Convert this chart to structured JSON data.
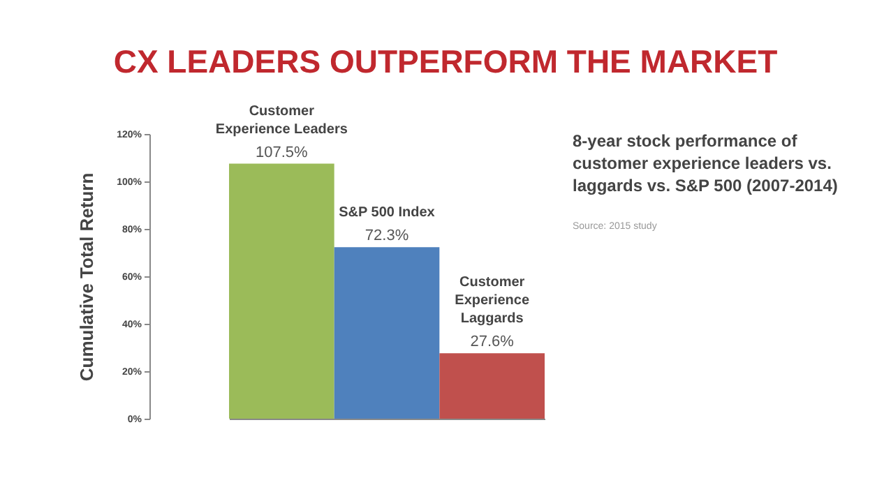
{
  "chart_data": {
    "type": "bar",
    "title": "CX LEADERS OUTPERFORM THE MARKET",
    "ylabel": "Cumulative Total Return",
    "categories": [
      "Customer Experience Leaders",
      "S&P 500 Index",
      "Customer Experience Laggards"
    ],
    "values": [
      107.5,
      72.3,
      27.6
    ],
    "colors": [
      "#9bbb59",
      "#4f81bd",
      "#c0504d"
    ],
    "value_labels": [
      "107.5%",
      "72.3%",
      "27.6%"
    ],
    "ylim": [
      0,
      120
    ],
    "yticks": [
      {
        "value": 0,
        "label": "0%"
      },
      {
        "value": 20,
        "label": "20%"
      },
      {
        "value": 40,
        "label": "40%"
      },
      {
        "value": 60,
        "label": "60%"
      },
      {
        "value": 80,
        "label": "80%"
      },
      {
        "value": 100,
        "label": "100%"
      },
      {
        "value": 120,
        "label": "120%"
      }
    ],
    "tick_labels": "y",
    "grid": false,
    "annotations": [
      "8-year stock performance of customer experience leaders vs. laggards vs. S&P 500 (2007-2014)",
      "Source: 2015 study"
    ]
  }
}
